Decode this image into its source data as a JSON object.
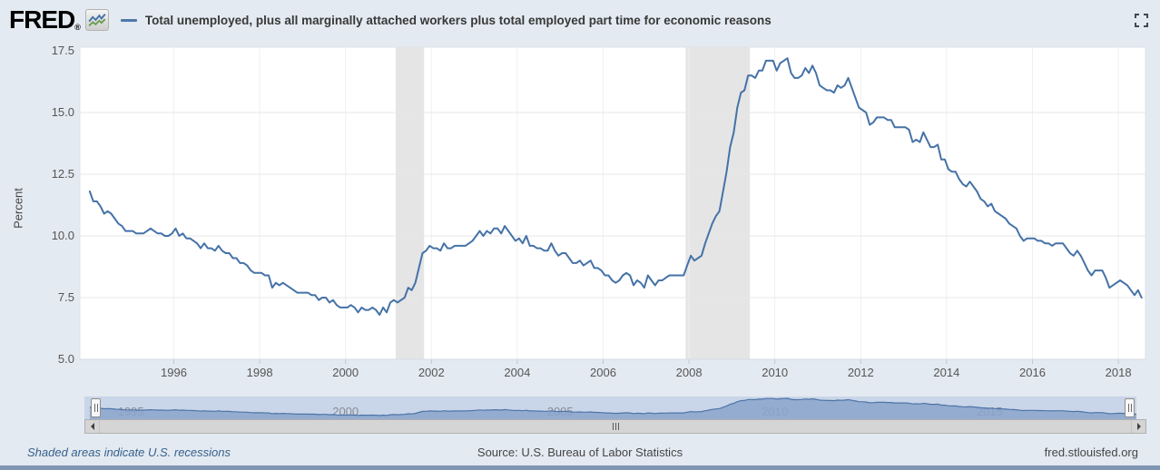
{
  "header": {
    "logo_text": "FRED",
    "logo_registered": "®",
    "series_label": "Total unemployed, plus all marginally attached workers plus total employed part time for economic reasons"
  },
  "chart_data": {
    "type": "line",
    "title": "Total unemployed, plus all marginally attached workers plus total employed part time for economic reasons",
    "xlabel": "",
    "ylabel": "Percent",
    "ylim": [
      5.0,
      17.5
    ],
    "y_ticks": [
      17.5,
      15.0,
      12.5,
      10.0,
      7.5,
      5.0
    ],
    "x_ticks": [
      1996,
      1998,
      2000,
      2002,
      2004,
      2006,
      2008,
      2010,
      2012,
      2014,
      2016,
      2018
    ],
    "grid": "on",
    "legend_position": "top",
    "line_color": "#4572a7",
    "recession_band_color": "#e5e5e5",
    "recession_bands": [
      [
        2001.17,
        2001.83
      ],
      [
        2007.92,
        2009.42
      ]
    ],
    "frequency": "monthly",
    "x_start": 1994.042,
    "values": [
      11.8,
      11.4,
      11.4,
      11.2,
      10.9,
      11.0,
      10.9,
      10.7,
      10.5,
      10.4,
      10.2,
      10.2,
      10.2,
      10.1,
      10.1,
      10.1,
      10.2,
      10.3,
      10.2,
      10.1,
      10.1,
      10.0,
      10.0,
      10.1,
      10.3,
      10.0,
      10.1,
      9.9,
      9.9,
      9.8,
      9.7,
      9.5,
      9.7,
      9.5,
      9.5,
      9.4,
      9.6,
      9.4,
      9.3,
      9.3,
      9.1,
      9.1,
      8.9,
      8.9,
      8.8,
      8.6,
      8.5,
      8.5,
      8.5,
      8.4,
      8.4,
      7.9,
      8.1,
      8.0,
      8.1,
      8.0,
      7.9,
      7.8,
      7.7,
      7.7,
      7.7,
      7.7,
      7.6,
      7.6,
      7.4,
      7.5,
      7.5,
      7.3,
      7.4,
      7.2,
      7.1,
      7.1,
      7.1,
      7.2,
      7.1,
      6.9,
      7.1,
      7.0,
      7.0,
      7.1,
      7.0,
      6.8,
      7.1,
      6.9,
      7.3,
      7.4,
      7.3,
      7.4,
      7.5,
      7.9,
      7.8,
      8.1,
      8.7,
      9.3,
      9.4,
      9.6,
      9.5,
      9.5,
      9.4,
      9.7,
      9.5,
      9.5,
      9.6,
      9.6,
      9.6,
      9.6,
      9.7,
      9.8,
      10.0,
      10.2,
      10.0,
      10.2,
      10.1,
      10.3,
      10.3,
      10.1,
      10.4,
      10.2,
      10.0,
      9.8,
      9.9,
      9.7,
      10.0,
      9.6,
      9.6,
      9.5,
      9.5,
      9.4,
      9.4,
      9.7,
      9.4,
      9.2,
      9.3,
      9.3,
      9.1,
      8.9,
      8.9,
      9.0,
      8.8,
      8.9,
      9.0,
      8.7,
      8.7,
      8.6,
      8.4,
      8.4,
      8.2,
      8.1,
      8.2,
      8.4,
      8.5,
      8.4,
      8.0,
      8.2,
      8.1,
      7.9,
      8.4,
      8.2,
      8.0,
      8.2,
      8.2,
      8.3,
      8.4,
      8.4,
      8.4,
      8.4,
      8.4,
      8.8,
      9.2,
      9.0,
      9.1,
      9.2,
      9.7,
      10.1,
      10.5,
      10.8,
      11.0,
      11.8,
      12.6,
      13.6,
      14.2,
      15.2,
      15.8,
      15.9,
      16.5,
      16.5,
      16.4,
      16.7,
      16.7,
      17.1,
      17.1,
      17.1,
      16.7,
      17.0,
      17.1,
      17.2,
      16.6,
      16.4,
      16.4,
      16.5,
      16.8,
      16.6,
      16.9,
      16.6,
      16.1,
      16.0,
      15.9,
      15.9,
      15.8,
      16.1,
      16.0,
      16.1,
      16.4,
      16.0,
      15.6,
      15.2,
      15.1,
      15.0,
      14.5,
      14.6,
      14.8,
      14.8,
      14.8,
      14.7,
      14.7,
      14.4,
      14.4,
      14.4,
      14.4,
      14.3,
      13.8,
      13.9,
      13.8,
      14.2,
      13.9,
      13.6,
      13.6,
      13.7,
      13.1,
      13.1,
      12.7,
      12.6,
      12.6,
      12.3,
      12.1,
      12.0,
      12.2,
      12.0,
      11.8,
      11.5,
      11.4,
      11.2,
      11.3,
      11.0,
      10.9,
      10.8,
      10.7,
      10.5,
      10.4,
      10.3,
      10.0,
      9.8,
      9.9,
      9.9,
      9.9,
      9.8,
      9.8,
      9.7,
      9.7,
      9.6,
      9.7,
      9.7,
      9.7,
      9.5,
      9.3,
      9.2,
      9.4,
      9.2,
      8.9,
      8.6,
      8.4,
      8.6,
      8.6,
      8.6,
      8.3,
      7.9,
      8.0,
      8.1,
      8.2,
      8.1,
      8.0,
      7.8,
      7.6,
      7.8,
      7.5
    ]
  },
  "slider": {
    "labels": [
      1995,
      2000,
      2005,
      2010,
      2015
    ]
  },
  "footer": {
    "recession_note": "Shaded areas indicate U.S. recessions",
    "source": "Source: U.S. Bureau of Labor Statistics",
    "site": "fred.stlouisfed.org"
  }
}
